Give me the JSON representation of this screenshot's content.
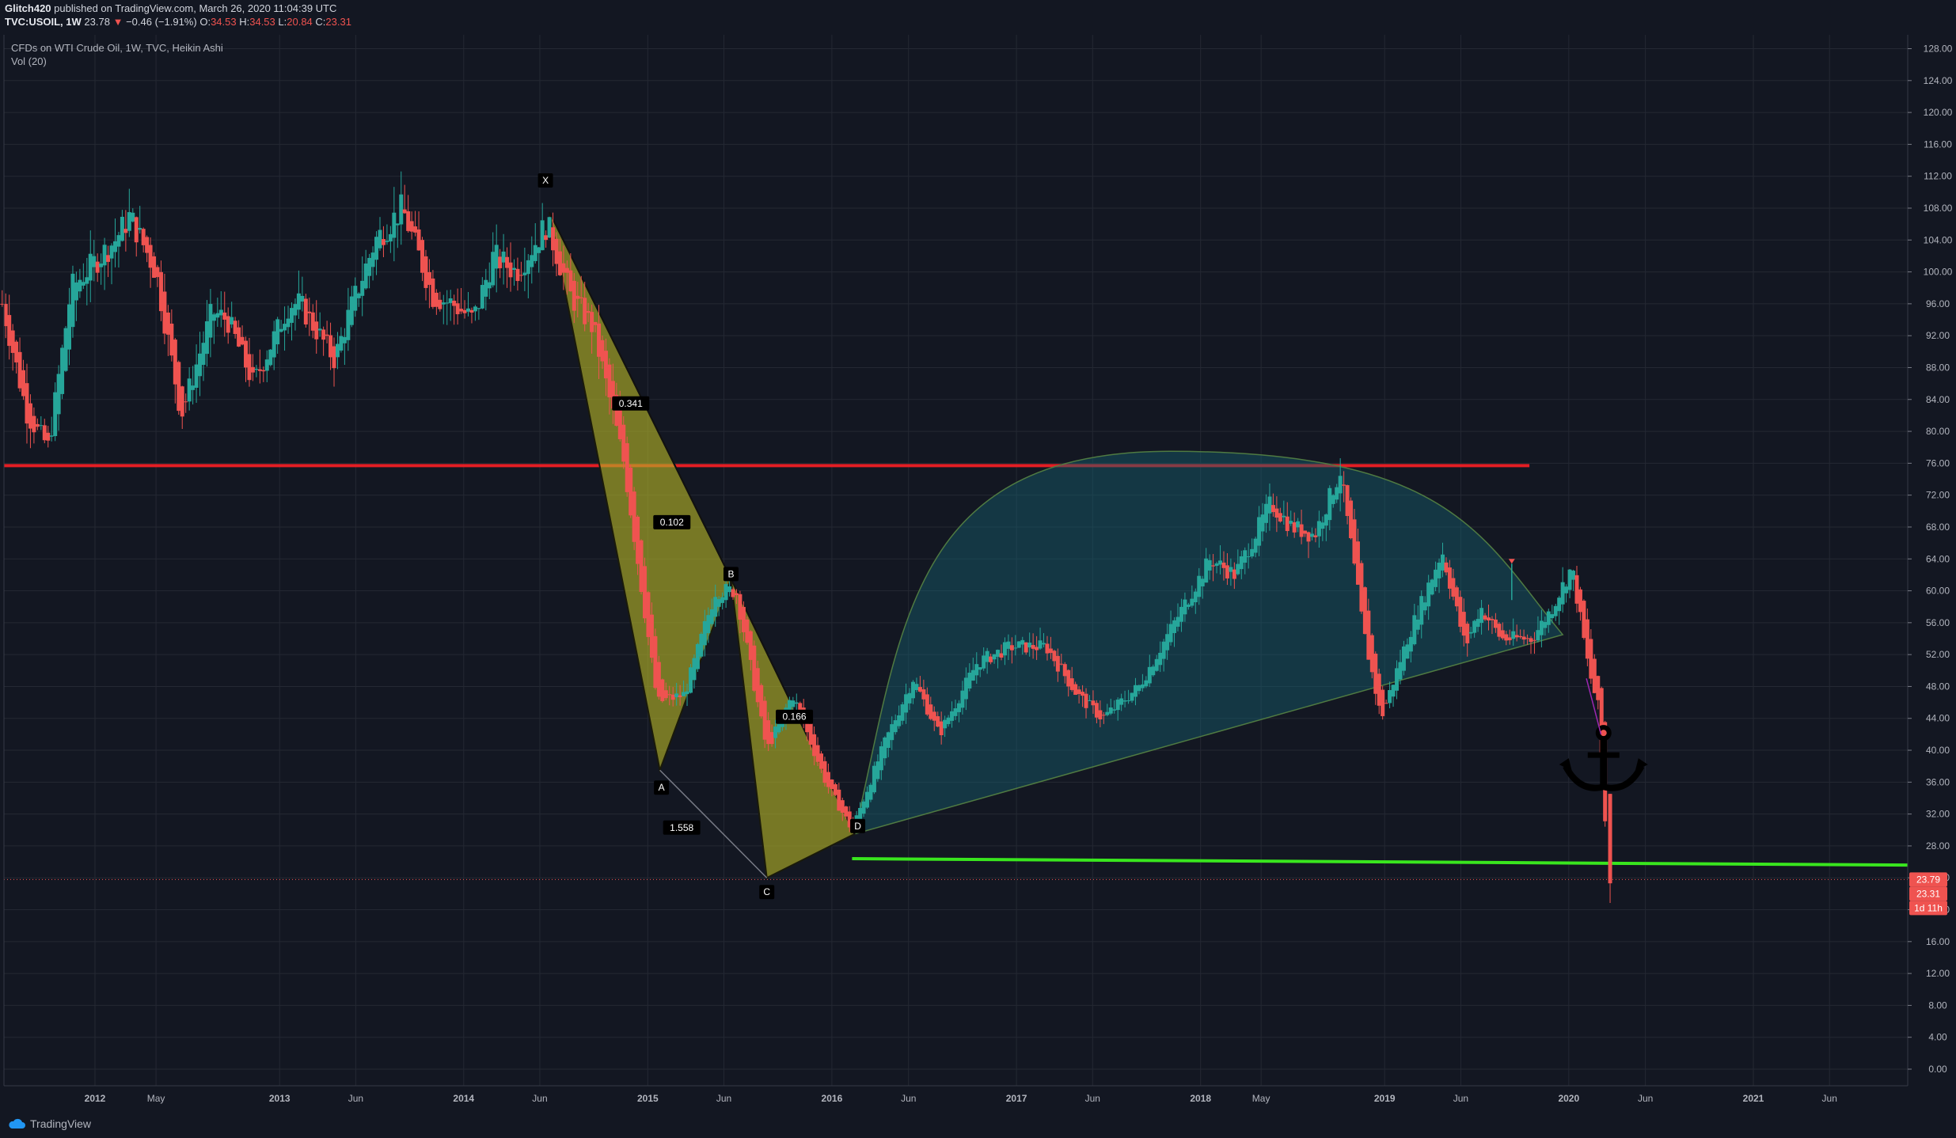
{
  "header": {
    "author": "Glitch420",
    "published_text": "published on TradingView.com, March 26, 2020 11:04:39 UTC",
    "symbol": "TVC:USOIL, 1W",
    "last": "23.78",
    "change_arrow": "▼",
    "change": "−0.46 (−1.91%)",
    "open_label": "O:",
    "open": "34.53",
    "high_label": "H:",
    "high": "34.53",
    "low_label": "L:",
    "low": "20.84",
    "close_label": "C:",
    "close": "23.31"
  },
  "legend": {
    "title": "CFDs on WTI Crude Oil, 1W, TVC, Heikin Ashi",
    "indicator": "Vol (20)"
  },
  "footer": {
    "brand": "TradingView"
  },
  "colors": {
    "background": "#131722",
    "grid": "#242833",
    "up": "#26a69a",
    "down": "#ef5350",
    "resistance": "#e31e24",
    "support": "#39e61e",
    "harmonic": "#b5b527",
    "arc": "#17606e"
  },
  "chart_data": {
    "type": "candlestick",
    "style": "Heikin Ashi",
    "interval": "1W",
    "grid": true,
    "ylim": [
      -2,
      130
    ],
    "y_ticks": [
      "128.00",
      "124.00",
      "120.00",
      "116.00",
      "112.00",
      "108.00",
      "104.00",
      "100.00",
      "96.00",
      "92.00",
      "88.00",
      "84.00",
      "80.00",
      "76.00",
      "72.00",
      "68.00",
      "64.00",
      "60.00",
      "56.00",
      "52.00",
      "48.00",
      "44.00",
      "40.00",
      "36.00",
      "32.00",
      "28.00",
      "24.00",
      "20.00",
      "16.00",
      "12.00",
      "8.00",
      "4.00",
      "0.00"
    ],
    "x_ticks": [
      {
        "date": "2012-01-01",
        "label": "2012"
      },
      {
        "date": "2012-05-01",
        "label": "May"
      },
      {
        "date": "2013-01-01",
        "label": "2013"
      },
      {
        "date": "2013-06-01",
        "label": "Jun"
      },
      {
        "date": "2014-01-01",
        "label": "2014"
      },
      {
        "date": "2014-06-01",
        "label": "Jun"
      },
      {
        "date": "2015-01-01",
        "label": "2015"
      },
      {
        "date": "2015-06-01",
        "label": "Jun"
      },
      {
        "date": "2016-01-01",
        "label": "2016"
      },
      {
        "date": "2016-06-01",
        "label": "Jun"
      },
      {
        "date": "2017-01-01",
        "label": "2017"
      },
      {
        "date": "2017-06-01",
        "label": "Jun"
      },
      {
        "date": "2018-01-01",
        "label": "2018"
      },
      {
        "date": "2018-05-01",
        "label": "May"
      },
      {
        "date": "2019-01-01",
        "label": "2019"
      },
      {
        "date": "2019-06-01",
        "label": "Jun"
      },
      {
        "date": "2020-01-01",
        "label": "2020"
      },
      {
        "date": "2020-06-01",
        "label": "Jun"
      },
      {
        "date": "2021-01-01",
        "label": "2021"
      },
      {
        "date": "2021-06-01",
        "label": "Jun"
      }
    ],
    "price_path": [
      [
        "2011-07-01",
        96
      ],
      [
        "2011-08-20",
        82
      ],
      [
        "2011-10-01",
        78
      ],
      [
        "2011-11-15",
        98
      ],
      [
        "2012-02-10",
        104
      ],
      [
        "2012-03-10",
        107
      ],
      [
        "2012-05-01",
        100
      ],
      [
        "2012-06-20",
        82
      ],
      [
        "2012-08-20",
        95
      ],
      [
        "2012-09-20",
        94
      ],
      [
        "2012-11-10",
        86
      ],
      [
        "2013-01-20",
        96
      ],
      [
        "2013-02-10",
        96
      ],
      [
        "2013-04-20",
        89
      ],
      [
        "2013-05-20",
        95
      ],
      [
        "2013-07-10",
        104
      ],
      [
        "2013-09-01",
        108
      ],
      [
        "2013-11-01",
        97
      ],
      [
        "2013-12-10",
        96
      ],
      [
        "2014-01-20",
        94
      ],
      [
        "2014-03-01",
        102
      ],
      [
        "2014-04-15",
        100
      ],
      [
        "2014-06-15",
        106
      ],
      [
        "2014-08-01",
        97
      ],
      [
        "2014-09-15",
        93
      ],
      [
        "2014-11-15",
        76
      ],
      [
        "2015-01-20",
        46
      ],
      [
        "2015-03-15",
        47
      ],
      [
        "2015-05-15",
        60
      ],
      [
        "2015-06-25",
        60
      ],
      [
        "2015-08-25",
        40
      ],
      [
        "2015-10-15",
        47
      ],
      [
        "2015-12-20",
        36
      ],
      [
        "2016-02-10",
        30
      ],
      [
        "2016-04-15",
        41
      ],
      [
        "2016-06-10",
        49
      ],
      [
        "2016-08-01",
        42
      ],
      [
        "2016-10-15",
        51
      ],
      [
        "2016-12-20",
        53
      ],
      [
        "2017-03-01",
        53
      ],
      [
        "2017-05-01",
        47
      ],
      [
        "2017-06-20",
        44
      ],
      [
        "2017-09-01",
        48
      ],
      [
        "2017-11-10",
        56
      ],
      [
        "2018-01-20",
        64
      ],
      [
        "2018-03-10",
        62
      ],
      [
        "2018-05-20",
        71
      ],
      [
        "2018-07-01",
        68
      ],
      [
        "2018-08-15",
        67
      ],
      [
        "2018-10-05",
        75
      ],
      [
        "2018-11-20",
        55
      ],
      [
        "2018-12-25",
        44
      ],
      [
        "2019-02-15",
        54
      ],
      [
        "2019-04-25",
        65
      ],
      [
        "2019-06-10",
        53
      ],
      [
        "2019-07-10",
        58
      ],
      [
        "2019-08-20",
        54
      ],
      [
        "2019-10-20",
        54
      ],
      [
        "2019-11-30",
        58
      ],
      [
        "2020-01-07",
        63
      ],
      [
        "2020-02-10",
        50
      ],
      [
        "2020-03-01",
        45
      ],
      [
        "2020-03-20",
        23
      ]
    ],
    "last_bar": {
      "open": 34.53,
      "high": 34.53,
      "low": 20.84,
      "close": 23.31
    },
    "price_labels": [
      "23.79",
      "23.31",
      "1d 11h"
    ],
    "horizontal_lines": [
      {
        "name": "resistance",
        "price": 75.7,
        "from": "2011-07-01",
        "to": "2019-10-15",
        "color": "#e31e24"
      },
      {
        "name": "support",
        "price": 26.4,
        "price_end": 25.6,
        "from": "2016-02-10",
        "to": "2021-11-15",
        "color": "#39e61e"
      }
    ],
    "harmonic_pattern": {
      "points": [
        {
          "label": "X",
          "date": "2014-06-20",
          "price": 107.5
        },
        {
          "label": "A",
          "date": "2015-01-25",
          "price": 37.5
        },
        {
          "label": "B",
          "date": "2015-06-15",
          "price": 61.5
        },
        {
          "label": "C",
          "date": "2015-08-25",
          "price": 24.0
        },
        {
          "label": "D",
          "date": "2016-02-15",
          "price": 29.5
        }
      ],
      "ratios": [
        "0.341",
        "0.102",
        "0.166",
        "1.558"
      ]
    },
    "arc_pattern": {
      "start": {
        "date": "2016-02-15",
        "price": 29.5
      },
      "peak": {
        "date": "2017-11-01",
        "price": 77.5
      },
      "end": {
        "date": "2019-12-20",
        "price": 54.5
      }
    },
    "annotations": [
      {
        "type": "anchor-icon",
        "date": "2020-03-10",
        "price": 38
      },
      {
        "type": "arrow-marker",
        "date": "2019-09-10",
        "price": 64
      }
    ]
  }
}
